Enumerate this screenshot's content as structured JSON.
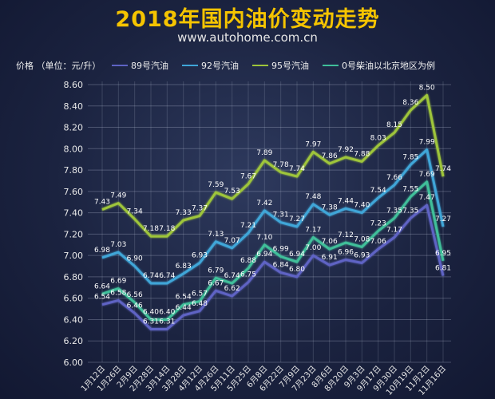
{
  "header": {
    "title": "2018年国内油价变动走势",
    "subtitle": "www.autohome.com.cn"
  },
  "chart_data": {
    "type": "line",
    "title": "2018年国内油价变动走势",
    "ylabel": "价格 （单位：元/升）",
    "note": "以北京地区为例",
    "ylim": [
      6.0,
      8.6
    ],
    "yticks": [
      "6.00",
      "6.20",
      "6.40",
      "6.60",
      "6.80",
      "7.00",
      "7.20",
      "7.40",
      "7.60",
      "7.80",
      "8.00",
      "8.20",
      "8.40",
      "8.60"
    ],
    "legend_position": "top",
    "grid": true,
    "categories": [
      "1月12日",
      "1月26日",
      "2月9日",
      "2月28日",
      "3月14日",
      "3月28日",
      "4月12日",
      "4月26日",
      "5月11日",
      "5月25日",
      "6月8日",
      "6月22日",
      "7月9日",
      "7月23日",
      "8月6日",
      "8月20日",
      "9月3日",
      "9月17日",
      "9月30日",
      "10月19日",
      "11月2日",
      "11月16日"
    ],
    "series": [
      {
        "name": "89号汽油",
        "color": "#5e63c4",
        "values": [
          6.54,
          6.58,
          6.46,
          6.31,
          6.31,
          6.44,
          6.48,
          6.67,
          6.62,
          6.75,
          6.94,
          6.84,
          6.8,
          7.0,
          6.91,
          6.96,
          6.93,
          7.06,
          7.17,
          7.35,
          7.47,
          6.81
        ]
      },
      {
        "name": "92号汽油",
        "color": "#3fa6d8",
        "values": [
          6.98,
          7.03,
          6.9,
          6.74,
          6.74,
          6.83,
          6.93,
          7.13,
          7.07,
          7.21,
          7.42,
          7.31,
          7.27,
          7.48,
          7.38,
          7.44,
          7.4,
          7.54,
          7.66,
          7.85,
          7.99,
          7.27
        ]
      },
      {
        "name": "95号汽油",
        "color": "#9ec53a",
        "values": [
          7.43,
          7.49,
          7.34,
          7.18,
          7.18,
          7.33,
          7.37,
          7.59,
          7.53,
          7.67,
          7.89,
          7.78,
          7.74,
          7.97,
          7.86,
          7.92,
          7.88,
          8.03,
          8.15,
          8.36,
          8.5,
          7.74
        ]
      },
      {
        "name": "0号柴油",
        "color": "#3fbf9a",
        "values": [
          6.64,
          6.69,
          6.56,
          6.4,
          6.4,
          6.54,
          6.57,
          6.79,
          6.74,
          6.88,
          7.1,
          6.99,
          6.94,
          7.17,
          7.06,
          7.12,
          7.08,
          7.23,
          7.35,
          7.55,
          7.69,
          6.95
        ]
      }
    ],
    "point_labels": [
      {
        "series": 0,
        "values": [
          "6.54",
          "6.58",
          "6.46",
          "6.31",
          "6.31",
          "6.44",
          "6.48",
          "6.67",
          "6.62",
          "6.75",
          "6.94",
          "6.84",
          "6.80",
          "7.00",
          "6.91",
          "6.96",
          "6.93",
          "7.06",
          "7.17",
          "7.35",
          "7.47",
          "6.81"
        ]
      },
      {
        "series": 1,
        "values": [
          "6.98",
          "7.03",
          "6.90",
          "6.74",
          "6.74",
          "6.83",
          "6.93",
          "7.13",
          "7.07",
          "7.21",
          "7.42",
          "7.31",
          "7.27",
          "7.48",
          "7.38",
          "7.44",
          "7.40",
          "7.54",
          "7.66",
          "7.85",
          "7.99",
          "7.27"
        ]
      },
      {
        "series": 2,
        "values": [
          "7.43",
          "7.49",
          "7.34",
          "7.18",
          "7.18",
          "7.33",
          "7.37",
          "7.59",
          "7.53",
          "7.67",
          "7.89",
          "7.78",
          "7.74",
          "7.97",
          "7.86",
          "7.92",
          "7.88",
          "8.03",
          "8.15",
          "8.36",
          "8.50",
          "7.74"
        ]
      },
      {
        "series": 3,
        "values": [
          "6.64",
          "6.69",
          "6.56",
          "6.40",
          "6.40",
          "6.54",
          "6.57",
          "6.79",
          "6.74",
          "6.88",
          "7.10",
          "6.99",
          "6.94",
          "7.17",
          "7.06",
          "7.12",
          "7.08",
          "7.23",
          "7.35",
          "7.55",
          "7.69",
          "6.95"
        ]
      }
    ]
  }
}
